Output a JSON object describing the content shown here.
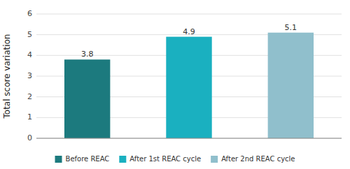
{
  "chart_data": {
    "type": "bar",
    "categories": [
      "Before REAC",
      "After 1st REAC cycle",
      "After 2nd REAC cycle"
    ],
    "values": [
      3.8,
      4.9,
      5.1
    ],
    "colors": [
      "#1c7a7e",
      "#1ab0c0",
      "#90bfcc"
    ],
    "ylabel": "Total score variation",
    "ylim": [
      0,
      6
    ],
    "yticks": [
      0,
      1,
      2,
      3,
      4,
      5,
      6
    ],
    "grid": true,
    "data_labels": true,
    "legend": "bottom",
    "tick_labels": "y"
  }
}
